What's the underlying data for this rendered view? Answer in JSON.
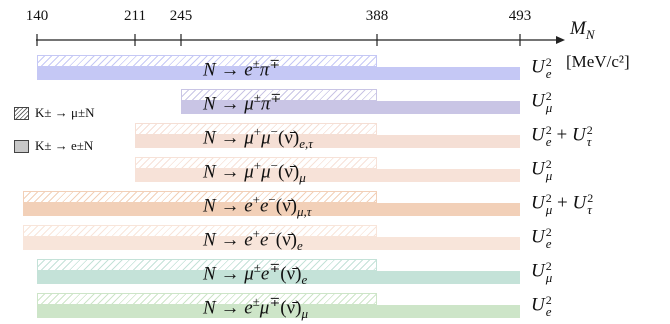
{
  "axis": {
    "title": "M",
    "title_sub": "N",
    "ticks": [
      140,
      211,
      245,
      388,
      493
    ],
    "unit": "[MeV/c²]"
  },
  "legend": [
    {
      "label": "K± → μ±N",
      "style": "hatched"
    },
    {
      "label": "K± → e±N",
      "style": "solid"
    }
  ],
  "channels": [
    {
      "process": "N → e±π∓",
      "coupling": "U²e",
      "color": "#c5c8f5",
      "kaon_mu_range": [
        140,
        388
      ],
      "kaon_e_range": [
        140,
        493
      ]
    },
    {
      "process": "N → μ±π∓",
      "coupling": "U²μ",
      "color": "#c9c5e5",
      "kaon_mu_range": [
        245,
        388
      ],
      "kaon_e_range": [
        245,
        493
      ]
    },
    {
      "process": "N → μ+μ−(ν̄)e,τ",
      "coupling": "U²e + U²τ",
      "color": "#f5dfd5",
      "kaon_mu_range": [
        211,
        388
      ],
      "kaon_e_range": [
        211,
        493
      ]
    },
    {
      "process": "N → μ+μ−(ν̄)μ",
      "coupling": "U²μ",
      "color": "#f7e2d8",
      "kaon_mu_range": [
        211,
        388
      ],
      "kaon_e_range": [
        211,
        493
      ]
    },
    {
      "process": "N → e+e−(ν̄)μ,τ",
      "coupling": "U²μ + U²τ",
      "color": "#f2d0b8",
      "kaon_mu_range": [
        130,
        388
      ],
      "kaon_e_range": [
        130,
        493
      ]
    },
    {
      "process": "N → e+e−(ν̄)e",
      "coupling": "U²e",
      "color": "#f8e5da",
      "kaon_mu_range": [
        130,
        388
      ],
      "kaon_e_range": [
        130,
        493
      ]
    },
    {
      "process": "N → μ±e∓(ν̄)e",
      "coupling": "U²μ",
      "color": "#c4e2d8",
      "kaon_mu_range": [
        140,
        388
      ],
      "kaon_e_range": [
        140,
        493
      ]
    },
    {
      "process": "N → e±μ∓(ν̄)μ",
      "coupling": "U²e",
      "color": "#cde5c8",
      "kaon_mu_range": [
        140,
        388
      ],
      "kaon_e_range": [
        140,
        493
      ]
    }
  ]
}
